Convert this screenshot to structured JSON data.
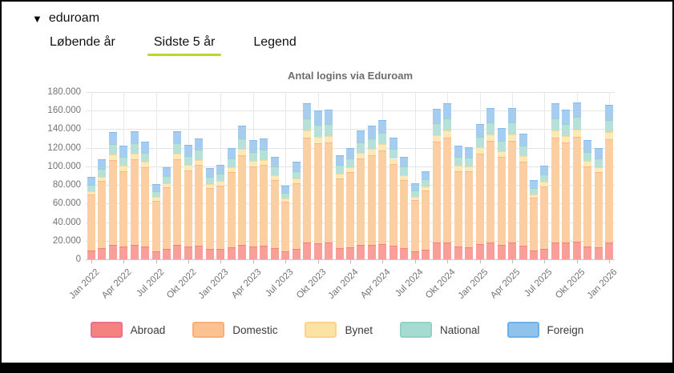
{
  "header": {
    "collapse_icon": "▼",
    "title": "eduroam"
  },
  "tabs": [
    {
      "label": "Løbende år",
      "active": false
    },
    {
      "label": "Sidste 5 år",
      "active": true
    },
    {
      "label": "Legend",
      "active": false
    }
  ],
  "accent_underline_color": "#bdd62e",
  "chart_data": {
    "type": "bar",
    "stacked": true,
    "title": "Antal logins via Eduroam",
    "xlabel": "",
    "ylabel": "",
    "ylim": [
      0,
      180000
    ],
    "grid": true,
    "legend_position": "bottom",
    "y_tick_labels": [
      "180.000",
      "160.000",
      "140.000",
      "120.000",
      "100.000",
      "80.000",
      "60.000",
      "40.000",
      "20.000",
      "0"
    ],
    "x_tick_labels": [
      "Jan 2022",
      "Apr 2022",
      "Jul 2022",
      "Okt 2022",
      "Jan 2023",
      "Apr 2023",
      "Jul 2023",
      "Okt 2023",
      "Jan 2024",
      "Apr 2024",
      "Jul 2024",
      "Okt 2024",
      "Jan 2025",
      "Apr 2025",
      "Jul 2025",
      "Okt 2025",
      "Jan 2026"
    ],
    "x_tick_every": 3,
    "categories": [
      "Jan 2022",
      "Feb 2022",
      "Mar 2022",
      "Apr 2022",
      "Maj 2022",
      "Jun 2022",
      "Jul 2022",
      "Aug 2022",
      "Sep 2022",
      "Okt 2022",
      "Nov 2022",
      "Dec 2022",
      "Jan 2023",
      "Feb 2023",
      "Mar 2023",
      "Apr 2023",
      "Maj 2023",
      "Jun 2023",
      "Jul 2023",
      "Aug 2023",
      "Sep 2023",
      "Okt 2023",
      "Nov 2023",
      "Dec 2023",
      "Jan 2024",
      "Feb 2024",
      "Mar 2024",
      "Apr 2024",
      "Maj 2024",
      "Jun 2024",
      "Jul 2024",
      "Aug 2024",
      "Sep 2024",
      "Okt 2024",
      "Nov 2024",
      "Dec 2024",
      "Jan 2025",
      "Feb 2025",
      "Mar 2025",
      "Apr 2025",
      "Maj 2025",
      "Jun 2025",
      "Jul 2025",
      "Aug 2025",
      "Sep 2025",
      "Okt 2025",
      "Nov 2025",
      "Dec 2025",
      "Jan 2026"
    ],
    "series": [
      {
        "name": "Abroad",
        "bar_fill": "#fa9e99",
        "bar_edge": "#f4807c",
        "legend_fill": "#f5827f",
        "legend_border": "#ef6d8d",
        "values": [
          9800,
          11900,
          15100,
          13400,
          15200,
          14000,
          8900,
          10900,
          15200,
          13500,
          14300,
          10800,
          11200,
          13200,
          15800,
          14100,
          14300,
          12100,
          8700,
          11600,
          18500,
          17600,
          17700,
          12300,
          13200,
          15300,
          15800,
          16500,
          14400,
          12100,
          9000,
          10500,
          17800,
          18500,
          13400,
          13300,
          16100,
          17900,
          15500,
          17900,
          14900,
          9400,
          11100,
          18500,
          17700,
          18600,
          14100,
          13200,
          18300
        ]
      },
      {
        "name": "Domestic",
        "bar_fill": "#fccfa3",
        "bar_edge": "#f9b884",
        "legend_fill": "#fac191",
        "legend_border": "#f8b078",
        "values": [
          59600,
          72300,
          91700,
          81700,
          92500,
          85000,
          54300,
          66300,
          92500,
          82500,
          87000,
          65700,
          68300,
          80400,
          96500,
          85700,
          87000,
          73600,
          52900,
          70300,
          112500,
          107200,
          107900,
          75100,
          80400,
          93100,
          96500,
          100400,
          87800,
          73600,
          54900,
          63600,
          108500,
          112500,
          81700,
          81100,
          97700,
          109300,
          94500,
          109300,
          90400,
          56900,
          67700,
          112500,
          107900,
          113200,
          85700,
          80400,
          111100
        ]
      },
      {
        "name": "Bynet",
        "bar_fill": "#fde9b8",
        "bar_edge": "#fbd98e",
        "legend_fill": "#fbe3a3",
        "legend_border": "#fad488",
        "values": [
          4000,
          4900,
          6200,
          5500,
          6200,
          5700,
          3600,
          4500,
          6200,
          5500,
          5900,
          4400,
          4600,
          5400,
          6500,
          5800,
          5900,
          5000,
          3600,
          4700,
          7600,
          7200,
          7200,
          5000,
          5400,
          6300,
          6500,
          6800,
          5900,
          5000,
          3700,
          4300,
          7300,
          7600,
          5500,
          5400,
          6600,
          7300,
          6300,
          7300,
          6100,
          3800,
          4500,
          7600,
          7200,
          7600,
          5800,
          5400,
          7500
        ]
      },
      {
        "name": "National",
        "bar_fill": "#b7e0d9",
        "bar_edge": "#97d4c9",
        "legend_fill": "#a7dbd1",
        "legend_border": "#92d2c5",
        "values": [
          7100,
          8600,
          11000,
          9800,
          11000,
          10200,
          6500,
          7900,
          11000,
          9800,
          10400,
          7800,
          8200,
          9600,
          11500,
          10200,
          10400,
          8800,
          6300,
          8400,
          13400,
          12800,
          12900,
          9000,
          9600,
          11100,
          11500,
          12000,
          10500,
          8800,
          6600,
          7600,
          13000,
          13400,
          9800,
          9700,
          11700,
          13000,
          11300,
          13000,
          10800,
          6800,
          8100,
          13400,
          12900,
          13500,
          10200,
          9600,
          13300
        ]
      },
      {
        "name": "Foreign",
        "bar_fill": "#a6cdf0",
        "bar_edge": "#84bbe9",
        "legend_fill": "#8fc3ec",
        "legend_border": "#6fb1e7",
        "values": [
          8500,
          10300,
          13000,
          11600,
          13100,
          12100,
          7700,
          9400,
          13100,
          11700,
          12400,
          9300,
          9700,
          11400,
          13700,
          12200,
          12400,
          10500,
          7500,
          10000,
          16000,
          15200,
          15300,
          10600,
          11400,
          13200,
          13700,
          14300,
          12400,
          10500,
          7800,
          9000,
          15400,
          16000,
          11600,
          11500,
          13900,
          15500,
          13400,
          15500,
          12800,
          8100,
          9600,
          16000,
          15300,
          16100,
          12200,
          11400,
          15800
        ]
      }
    ]
  }
}
